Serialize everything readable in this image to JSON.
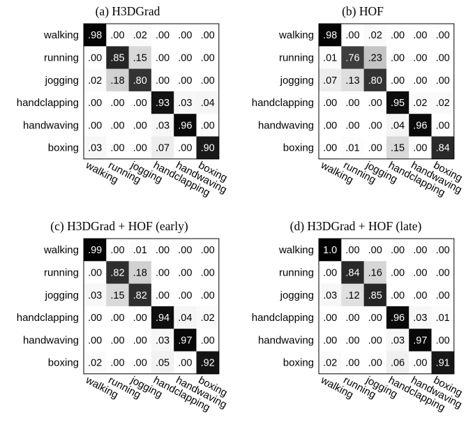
{
  "chart_data": [
    {
      "type": "heatmap",
      "title": "(a) H3DGrad",
      "row_labels": [
        "walking",
        "running",
        "jogging",
        "handclapping",
        "handwaving",
        "boxing"
      ],
      "col_labels": [
        "walking",
        "running",
        "jogging",
        "handclapping",
        "handwaving",
        "boxing"
      ],
      "values": [
        [
          0.98,
          0.0,
          0.02,
          0.0,
          0.0,
          0.0
        ],
        [
          0.0,
          0.85,
          0.15,
          0.0,
          0.0,
          0.0
        ],
        [
          0.02,
          0.18,
          0.8,
          0.0,
          0.0,
          0.0
        ],
        [
          0.0,
          0.0,
          0.0,
          0.93,
          0.03,
          0.04
        ],
        [
          0.0,
          0.0,
          0.0,
          0.03,
          0.96,
          0.0
        ],
        [
          0.03,
          0.0,
          0.0,
          0.07,
          0.0,
          0.9
        ]
      ],
      "labels": [
        [
          ".98",
          ".00",
          ".02",
          ".00",
          ".00",
          ".00"
        ],
        [
          ".00",
          ".85",
          ".15",
          ".00",
          ".00",
          ".00"
        ],
        [
          ".02",
          ".18",
          ".80",
          ".00",
          ".00",
          ".00"
        ],
        [
          ".00",
          ".00",
          ".00",
          ".93",
          ".03",
          ".04"
        ],
        [
          ".00",
          ".00",
          ".00",
          ".03",
          ".96",
          ".00"
        ],
        [
          ".03",
          ".00",
          ".00",
          ".07",
          ".00",
          ".90"
        ]
      ],
      "colormap": "grayscale-reversed",
      "value_range": [
        0,
        1
      ]
    },
    {
      "type": "heatmap",
      "title": "(b) HOF",
      "row_labels": [
        "walking",
        "running",
        "jogging",
        "handclapping",
        "handwaving",
        "boxing"
      ],
      "col_labels": [
        "walking",
        "running",
        "jogging",
        "handclapping",
        "handwaving",
        "boxing"
      ],
      "values": [
        [
          0.98,
          0.0,
          0.02,
          0.0,
          0.0,
          0.0
        ],
        [
          0.01,
          0.76,
          0.23,
          0.0,
          0.0,
          0.0
        ],
        [
          0.07,
          0.13,
          0.8,
          0.0,
          0.0,
          0.0
        ],
        [
          0.0,
          0.0,
          0.0,
          0.95,
          0.02,
          0.02
        ],
        [
          0.0,
          0.0,
          0.0,
          0.04,
          0.96,
          0.0
        ],
        [
          0.0,
          0.01,
          0.0,
          0.15,
          0.0,
          0.84
        ]
      ],
      "labels": [
        [
          ".98",
          ".00",
          ".02",
          ".00",
          ".00",
          ".00"
        ],
        [
          ".01",
          ".76",
          ".23",
          ".00",
          ".00",
          ".00"
        ],
        [
          ".07",
          ".13",
          ".80",
          ".00",
          ".00",
          ".00"
        ],
        [
          ".00",
          ".00",
          ".00",
          ".95",
          ".02",
          ".02"
        ],
        [
          ".00",
          ".00",
          ".00",
          ".04",
          ".96",
          ".00"
        ],
        [
          ".00",
          ".01",
          ".00",
          ".15",
          ".00",
          ".84"
        ]
      ],
      "colormap": "grayscale-reversed",
      "value_range": [
        0,
        1
      ]
    },
    {
      "type": "heatmap",
      "title": "(c) H3DGrad + HOF (early)",
      "row_labels": [
        "walking",
        "running",
        "jogging",
        "handclapping",
        "handwaving",
        "boxing"
      ],
      "col_labels": [
        "walking",
        "running",
        "jogging",
        "handclapping",
        "handwaving",
        "boxing"
      ],
      "values": [
        [
          0.99,
          0.0,
          0.01,
          0.0,
          0.0,
          0.0
        ],
        [
          0.0,
          0.82,
          0.18,
          0.0,
          0.0,
          0.0
        ],
        [
          0.03,
          0.15,
          0.82,
          0.0,
          0.0,
          0.0
        ],
        [
          0.0,
          0.0,
          0.0,
          0.94,
          0.04,
          0.02
        ],
        [
          0.0,
          0.0,
          0.0,
          0.03,
          0.97,
          0.0
        ],
        [
          0.02,
          0.0,
          0.0,
          0.05,
          0.0,
          0.92
        ]
      ],
      "labels": [
        [
          ".99",
          ".00",
          ".01",
          ".00",
          ".00",
          ".00"
        ],
        [
          ".00",
          ".82",
          ".18",
          ".00",
          ".00",
          ".00"
        ],
        [
          ".03",
          ".15",
          ".82",
          ".00",
          ".00",
          ".00"
        ],
        [
          ".00",
          ".00",
          ".00",
          ".94",
          ".04",
          ".02"
        ],
        [
          ".00",
          ".00",
          ".00",
          ".03",
          ".97",
          ".00"
        ],
        [
          ".02",
          ".00",
          ".00",
          ".05",
          ".00",
          ".92"
        ]
      ],
      "colormap": "grayscale-reversed",
      "value_range": [
        0,
        1
      ]
    },
    {
      "type": "heatmap",
      "title": "(d) H3DGrad + HOF (late)",
      "row_labels": [
        "walking",
        "running",
        "jogging",
        "handclapping",
        "handwaving",
        "boxing"
      ],
      "col_labels": [
        "walking",
        "running",
        "jogging",
        "handclapping",
        "handwaving",
        "boxing"
      ],
      "values": [
        [
          1.0,
          0.0,
          0.0,
          0.0,
          0.0,
          0.0
        ],
        [
          0.0,
          0.84,
          0.16,
          0.0,
          0.0,
          0.0
        ],
        [
          0.03,
          0.12,
          0.85,
          0.0,
          0.0,
          0.0
        ],
        [
          0.0,
          0.0,
          0.0,
          0.96,
          0.03,
          0.01
        ],
        [
          0.0,
          0.0,
          0.0,
          0.03,
          0.97,
          0.0
        ],
        [
          0.02,
          0.0,
          0.0,
          0.06,
          0.0,
          0.91
        ]
      ],
      "labels": [
        [
          "1.0",
          ".00",
          ".00",
          ".00",
          ".00",
          ".00"
        ],
        [
          ".00",
          ".84",
          ".16",
          ".00",
          ".00",
          ".00"
        ],
        [
          ".03",
          ".12",
          ".85",
          ".00",
          ".00",
          ".00"
        ],
        [
          ".00",
          ".00",
          ".00",
          ".96",
          ".03",
          ".01"
        ],
        [
          ".00",
          ".00",
          ".00",
          ".03",
          ".97",
          ".00"
        ],
        [
          ".02",
          ".00",
          ".00",
          ".06",
          ".00",
          ".91"
        ]
      ],
      "colormap": "grayscale-reversed",
      "value_range": [
        0,
        1
      ]
    }
  ]
}
